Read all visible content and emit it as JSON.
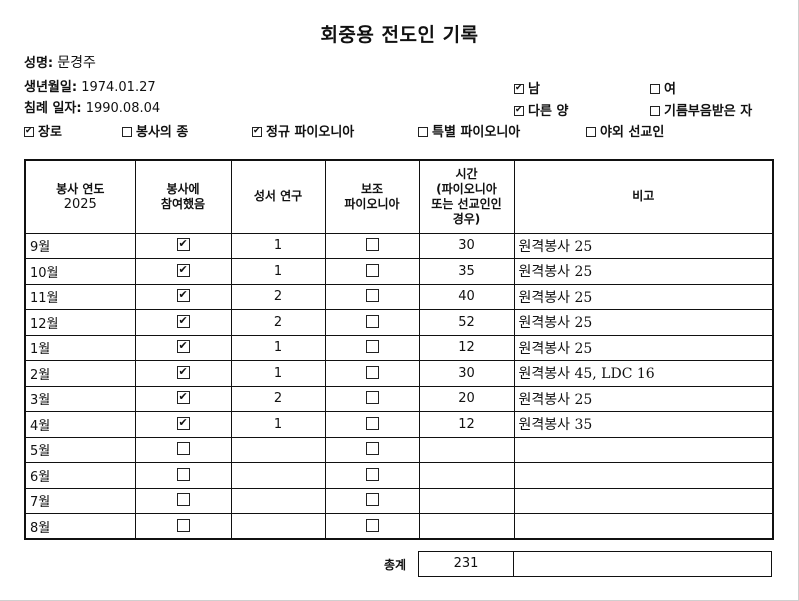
{
  "title": "회중용 전도인 기록",
  "person": {
    "name_label": "성명:",
    "name": "문경주",
    "birth_label": "생년월일:",
    "birth": "1974.01.27",
    "baptism_label": "침례 일자:",
    "baptism": "1990.08.04"
  },
  "options": {
    "male": {
      "label": "남",
      "checked": true
    },
    "female": {
      "label": "여",
      "checked": false
    },
    "other_sheep": {
      "label": "다른 양",
      "checked": true
    },
    "anointed": {
      "label": "기름부음받은 자",
      "checked": false
    },
    "elder": {
      "label": "장로",
      "checked": true
    },
    "ministerial_servant": {
      "label": "봉사의 종",
      "checked": false
    },
    "regular_pioneer": {
      "label": "정규 파이오니아",
      "checked": true
    },
    "special_pioneer": {
      "label": "특별 파이오니아",
      "checked": false
    },
    "missionary": {
      "label": "야외 선교인",
      "checked": false
    }
  },
  "table": {
    "headers": {
      "service_year": "봉사 연도",
      "year": "2025",
      "shared": "봉사에\n참여했음",
      "studies": "성서 연구",
      "aux": "보조\n파이오니아",
      "hours": "시간\n(파이오니아\n또는 선교인인\n경우)",
      "remarks": "비고"
    },
    "rows": [
      {
        "month": "9월",
        "shared": true,
        "studies": "1",
        "aux": false,
        "hours": "30",
        "remarks": "원격봉사 25"
      },
      {
        "month": "10월",
        "shared": true,
        "studies": "1",
        "aux": false,
        "hours": "35",
        "remarks": "원격봉사 25"
      },
      {
        "month": "11월",
        "shared": true,
        "studies": "2",
        "aux": false,
        "hours": "40",
        "remarks": "원격봉사 25"
      },
      {
        "month": "12월",
        "shared": true,
        "studies": "2",
        "aux": false,
        "hours": "52",
        "remarks": "원격봉사 25"
      },
      {
        "month": "1월",
        "shared": true,
        "studies": "1",
        "aux": false,
        "hours": "12",
        "remarks": "원격봉사 25"
      },
      {
        "month": "2월",
        "shared": true,
        "studies": "1",
        "aux": false,
        "hours": "30",
        "remarks": "원격봉사 45, LDC 16"
      },
      {
        "month": "3월",
        "shared": true,
        "studies": "2",
        "aux": false,
        "hours": "20",
        "remarks": "원격봉사 25"
      },
      {
        "month": "4월",
        "shared": true,
        "studies": "1",
        "aux": false,
        "hours": "12",
        "remarks": "원격봉사 35"
      },
      {
        "month": "5월",
        "shared": false,
        "studies": "",
        "aux": false,
        "hours": "",
        "remarks": ""
      },
      {
        "month": "6월",
        "shared": false,
        "studies": "",
        "aux": false,
        "hours": "",
        "remarks": ""
      },
      {
        "month": "7월",
        "shared": false,
        "studies": "",
        "aux": false,
        "hours": "",
        "remarks": ""
      },
      {
        "month": "8월",
        "shared": false,
        "studies": "",
        "aux": false,
        "hours": "",
        "remarks": ""
      }
    ],
    "total_label": "총계",
    "total_hours": "231"
  }
}
